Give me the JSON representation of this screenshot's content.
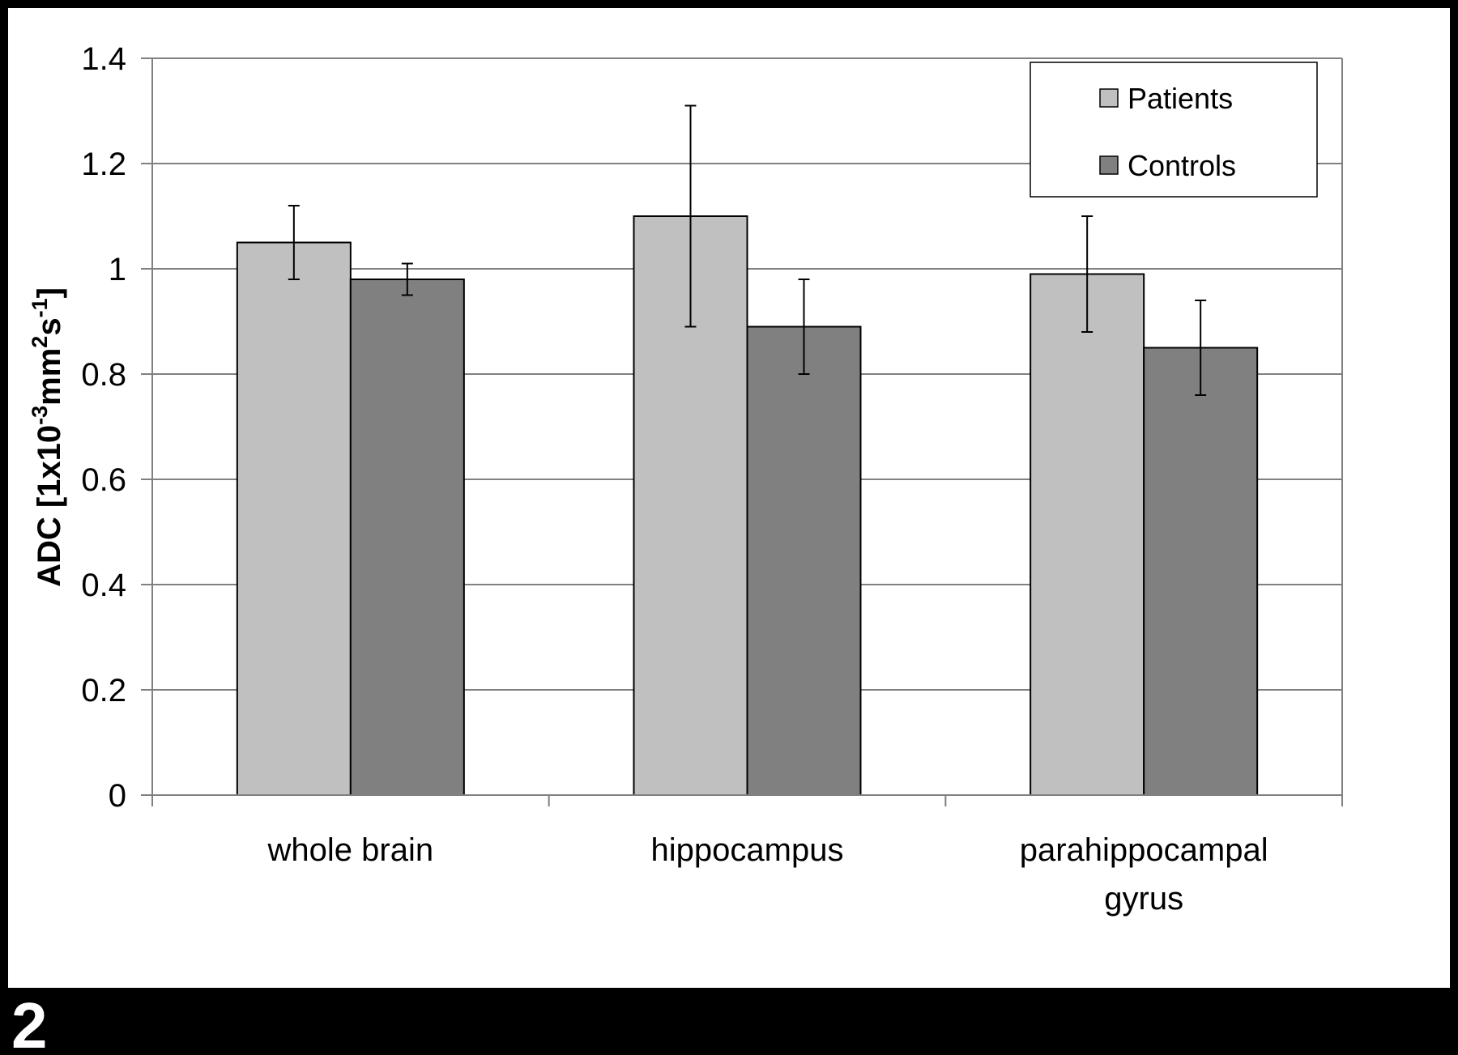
{
  "figure_number": "2",
  "colors": {
    "background": "#000000",
    "plot_panel": "#ffffff",
    "gridline": "#808080",
    "axis": "#808080",
    "text": "#000000",
    "patients": "#c0c0c0",
    "controls": "#808080",
    "bar_outline": "#000000"
  },
  "chart_data": {
    "type": "bar",
    "title": "",
    "xlabel": "",
    "ylabel": {
      "prefix": "ADC [1x10",
      "exp1": "-3",
      "mid1": "mm",
      "exp2": "2",
      "mid2": "s",
      "exp3": "-1",
      "suffix": "]"
    },
    "categories": [
      [
        "whole brain"
      ],
      [
        "hippocampus"
      ],
      [
        "parahippocampal",
        "gyrus"
      ]
    ],
    "series": [
      {
        "name": "Patients",
        "color": "#c0c0c0",
        "values": [
          1.05,
          1.1,
          0.99
        ],
        "error": [
          0.07,
          0.21,
          0.11
        ]
      },
      {
        "name": "Controls",
        "color": "#808080",
        "values": [
          0.98,
          0.89,
          0.85
        ],
        "error": [
          0.03,
          0.09,
          0.09
        ]
      }
    ],
    "ylim": [
      0,
      1.4
    ],
    "yticks": [
      0,
      0.2,
      0.4,
      0.6,
      0.8,
      1,
      1.2,
      1.4
    ],
    "ytick_labels": [
      "0",
      "0.2",
      "0.4",
      "0.6",
      "0.8",
      "1",
      "1.2",
      "1.4"
    ],
    "grid": true,
    "legend_position": "top-right"
  }
}
